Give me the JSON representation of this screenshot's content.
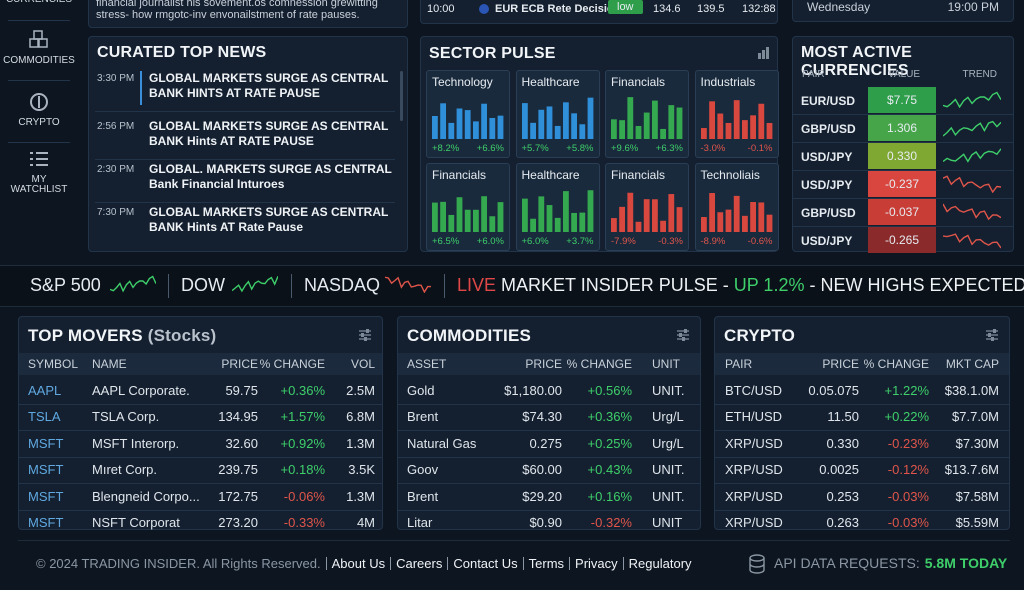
{
  "sidebar": [
    {
      "label": "CURRENCIES"
    },
    {
      "label": "COMMODITIES"
    },
    {
      "label": "CRYPTO"
    },
    {
      "label": "MY WATCHLIST"
    }
  ],
  "top_strip": {
    "news_snippet": "financial journalist his sovement.os comnession grewitting stress- how rmgotc-inv envonailstment of rate pauses.",
    "event": {
      "time": "10:00",
      "name": "EUR ECB Rete Decision",
      "impact": "low",
      "actual": "134.6",
      "forecast": "139.5",
      "previous": "132:88"
    },
    "calendar": {
      "day": "Wednesday",
      "time": "19:00 PM"
    }
  },
  "news": {
    "title": "CURATED TOP NEWS",
    "items": [
      {
        "time": "3:30 PM",
        "headline": "GLOBAL MARKETS SURGE AS CENTRAL BANK HINTS AT RATE PAUSE"
      },
      {
        "time": "2:56 PM",
        "headline": "GLOBAL MARKETS SURGE AS CENTRAL BANK Hints AT RATE PAUSE"
      },
      {
        "time": "2:30 PM",
        "headline": "GLOBAL. MARKETS SURGE AS CENTRAL Bank Financial Inturoes"
      },
      {
        "time": "7:30 PM",
        "headline": "GLOBAL MARKETS SURGE AS CENTRAL BANK Hints AT Rate Pause"
      }
    ]
  },
  "sector_pulse": {
    "title": "SECTOR PULSE",
    "tiles": [
      {
        "name": "Technology",
        "change_1": "+8.2%",
        "change_2": "+6.6%",
        "color": "#2f8fd8"
      },
      {
        "name": "Healthcare",
        "change_1": "+5.7%",
        "change_2": "+5.8%",
        "color": "#2f8fd8"
      },
      {
        "name": "Financials",
        "change_1": "+9.6%",
        "change_2": "+6.3%",
        "color": "#35a94f"
      },
      {
        "name": "Industrials",
        "change_1": "-3.0%",
        "change_2": "-0.1%",
        "color": "#d9483f"
      },
      {
        "name": "Financials",
        "change_1": "+6.5%",
        "change_2": "+6.0%",
        "color": "#35a94f"
      },
      {
        "name": "Healthcare",
        "change_1": "+6.0%",
        "change_2": "+3.7%",
        "color": "#35a94f"
      },
      {
        "name": "Financials",
        "change_1": "-7.9%",
        "change_2": "-0.3%",
        "color": "#d9483f"
      },
      {
        "name": "Technoliais",
        "change_1": "-8.9%",
        "change_2": "-0.6%",
        "color": "#d9483f"
      }
    ]
  },
  "currencies": {
    "title": "MOST ACTIVE CURRENCIES",
    "columns": [
      "PAIR",
      "VALUE",
      "TREND"
    ],
    "rows": [
      {
        "pair": "EUR/USD",
        "value": "$7.75",
        "color": "#2e9e4a",
        "trend_color": "#3ecf6a"
      },
      {
        "pair": "GBP/USD",
        "value": "1.306",
        "color": "#45a548",
        "trend_color": "#3ecf6a"
      },
      {
        "pair": "USD/JPY",
        "value": "0.330",
        "color": "#7ea832",
        "trend_color": "#3ecf6a"
      },
      {
        "pair": "USD/JPY",
        "value": "-0.237",
        "color": "#d9463f",
        "trend_color": "#e0554a"
      },
      {
        "pair": "GBP/USD",
        "value": "-0.037",
        "color": "#c93d37",
        "trend_color": "#e0554a"
      },
      {
        "pair": "USD/JPY",
        "value": "-0.265",
        "color": "#8a2a2a",
        "trend_color": "#e0554a"
      }
    ]
  },
  "ticker": {
    "items": [
      {
        "label": "S&P 500",
        "color": "#3ecf6a"
      },
      {
        "label": "DOW",
        "color": "#3ecf6a"
      },
      {
        "label": "NASDAQ",
        "color": "#e0554a"
      }
    ],
    "live": "LIVE",
    "message": "MARKET INSIDER PULSE -",
    "highlight": "UP 1.2%",
    "tail": "- NEW HIGHS EXPECTED..."
  },
  "top_movers": {
    "title": "TOP MOVERS",
    "title_suffix": "(Stocks)",
    "columns": [
      "SYMBOL",
      "NAME",
      "PRICE",
      "% CHANGE",
      "VOL"
    ],
    "rows": [
      [
        "AAPL",
        "AAPL Corporate.",
        "59.75",
        "+0.36%",
        "2.5M"
      ],
      [
        "TSLA",
        "TSLA Corp.",
        "134.95",
        "+1.57%",
        "6.8M"
      ],
      [
        "MSFT",
        "MSFT Interorp.",
        "32.60",
        "+0.92%",
        "1.3M"
      ],
      [
        "MSFT",
        "Mıret Corp.",
        "239.75",
        "+0.18%",
        "3.5K"
      ],
      [
        "MSFT",
        "Blengneid Corpo...",
        "172.75",
        "-0.06%",
        "1.3M"
      ],
      [
        "MSFT",
        "NSFT Corporat",
        "273.20",
        "-0.33%",
        "4M"
      ]
    ]
  },
  "commodities": {
    "title": "COMMODITIES",
    "columns": [
      "ASSET",
      "PRICE",
      "% CHANGE",
      "UNIT"
    ],
    "rows": [
      [
        "Gold",
        "$1,180.00",
        "+0.56%",
        "UNIT."
      ],
      [
        "Brent",
        "$74.30",
        "+0.36%",
        "Urg/L"
      ],
      [
        "Natural Gas",
        "0.275",
        "+0.25%",
        "Urg/L"
      ],
      [
        "Goov",
        "$60.00",
        "+0.43%",
        "UNIT."
      ],
      [
        "Brent",
        "$29.20",
        "+0.16%",
        "UNIT."
      ],
      [
        "Litar",
        "$0.90",
        "-0.32%",
        "UNIT"
      ]
    ]
  },
  "crypto": {
    "title": "CRYPTO",
    "columns": [
      "PAIR",
      "PRICE",
      "% CHANGE",
      "MKT CAP"
    ],
    "rows": [
      [
        "BTC/USD",
        "0.05.075",
        "+1.22%",
        "$38.1.0M"
      ],
      [
        "ETH/USD",
        "11.50",
        "+0.22%",
        "$7.7.0M"
      ],
      [
        "XRP/USD",
        "0.330",
        "-0.23%",
        "$7.30M"
      ],
      [
        "XRP/USD",
        "0.0025",
        "-0.12%",
        "$13.7.6M"
      ],
      [
        "XRP/USD",
        "0.253",
        "-0.03%",
        "$7.58M"
      ],
      [
        "XRP/USD",
        "0.263",
        "-0.03%",
        "$5.59M"
      ]
    ]
  },
  "footer": {
    "copyright": "© 2024 TRADING INSIDER. All Rights Reserved.",
    "links": [
      "About Us",
      "Careers",
      "Contact Us",
      "Terms",
      "Privacy",
      "Regulatory"
    ],
    "api_label": "API DATA REQUESTS:",
    "api_value": "5.8M TODAY"
  }
}
